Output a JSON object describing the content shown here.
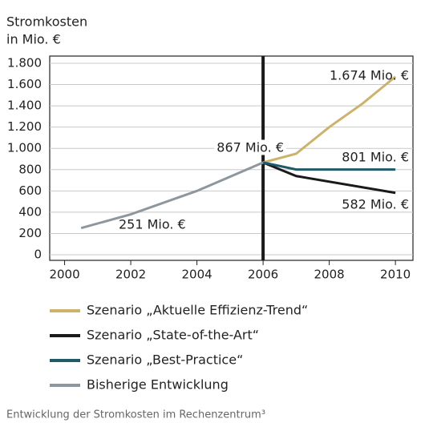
{
  "chart_data": {
    "type": "line",
    "ylabel": [
      "Stromkosten",
      "in Mio. €"
    ],
    "xlim": [
      1999.55,
      2010.53
    ],
    "xticks": [
      2000,
      2002,
      2004,
      2006,
      2008,
      2010
    ],
    "ylim": [
      0,
      1800
    ],
    "yticks": [
      0,
      200,
      400,
      600,
      800,
      {
        "value": 1000,
        "label": "1.000"
      },
      {
        "value": 1200,
        "label": "1.200"
      },
      {
        "value": 1400,
        "label": "1.400"
      },
      {
        "value": 1600,
        "label": "1.600"
      },
      {
        "value": 1800,
        "label": "1.800"
      }
    ],
    "grid": true,
    "marker_line": 2006,
    "series": [
      {
        "name": "Szenario „Aktuelle Effizienz-Trend“",
        "color": "#cdb36a",
        "x": [
          2006,
          2007,
          2008,
          2009,
          2010
        ],
        "values": [
          867,
          950,
          1200,
          1420,
          1674
        ]
      },
      {
        "name": "Szenario „State-of-the-Art“",
        "color": "#1a1a1a",
        "x": [
          2006,
          2007,
          2010
        ],
        "values": [
          867,
          740,
          582
        ]
      },
      {
        "name": "Szenario „Best-Practice“",
        "color": "#1f5a68",
        "x": [
          2006,
          2007,
          2010
        ],
        "values": [
          867,
          801,
          801
        ]
      },
      {
        "name": "Bisherige Entwicklung",
        "color": "#8d979d",
        "x": [
          2000.5,
          2002,
          2004,
          2006
        ],
        "values": [
          251,
          380,
          600,
          867
        ]
      }
    ],
    "annotations": [
      "1.674 Mio. €",
      "801 Mio. €",
      "582 Mio. €",
      "867 Mio. €",
      "251 Mio. €"
    ],
    "caption": "Entwicklung der Stromkosten im Rechenzentrum³"
  }
}
